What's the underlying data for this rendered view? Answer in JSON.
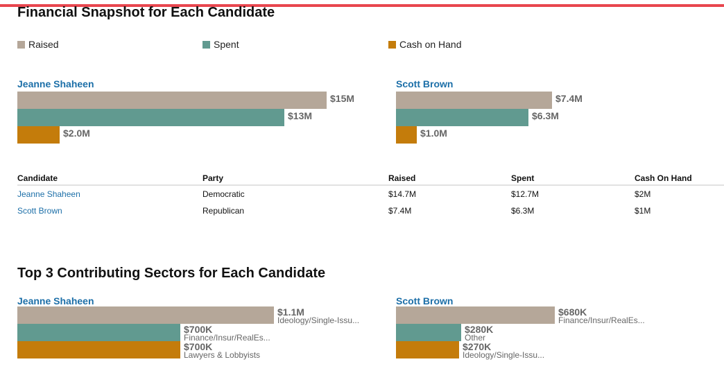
{
  "colors": {
    "raised": "#b5a799",
    "spent": "#619a90",
    "cash": "#c47c0b",
    "accent": "#e8464e",
    "link": "#1c6fa8"
  },
  "snapshot": {
    "title": "Financial Snapshot for Each Candidate",
    "legend": [
      "Raised",
      "Spent",
      "Cash on Hand"
    ]
  },
  "table": {
    "headers": [
      "Candidate",
      "Party",
      "Raised",
      "Spent",
      "Cash On Hand"
    ],
    "rows": [
      [
        "Jeanne Shaheen",
        "Democratic",
        "$14.7M",
        "$12.7M",
        "$2M"
      ],
      [
        "Scott Brown",
        "Republican",
        "$7.4M",
        "$6.3M",
        "$1M"
      ]
    ]
  },
  "sectors": {
    "title": "Top 3 Contributing Sectors for Each Candidate"
  },
  "chart_data": [
    {
      "type": "bar",
      "title": "Jeanne Shaheen",
      "categories": [
        "Raised",
        "Spent",
        "Cash on Hand"
      ],
      "values": [
        14.7,
        12.7,
        2.0
      ],
      "labels": [
        "$15M",
        "$13M",
        "$2.0M"
      ],
      "unit": "$M"
    },
    {
      "type": "bar",
      "title": "Scott Brown",
      "categories": [
        "Raised",
        "Spent",
        "Cash on Hand"
      ],
      "values": [
        7.4,
        6.3,
        1.0
      ],
      "labels": [
        "$7.4M",
        "$6.3M",
        "$1.0M"
      ],
      "unit": "$M"
    },
    {
      "type": "bar",
      "title": "Jeanne Shaheen",
      "categories": [
        "Ideology/Single-Issu...",
        "Finance/Insur/RealEs...",
        "Lawyers & Lobbyists"
      ],
      "values": [
        1100,
        700,
        700
      ],
      "labels": [
        "$1.1M",
        "$700K",
        "$700K"
      ],
      "unit": "$K"
    },
    {
      "type": "bar",
      "title": "Scott Brown",
      "categories": [
        "Finance/Insur/RealEs...",
        "Other",
        "Ideology/Single-Issu..."
      ],
      "values": [
        680,
        280,
        270
      ],
      "labels": [
        "$680K",
        "$280K",
        "$270K"
      ],
      "unit": "$K"
    }
  ]
}
